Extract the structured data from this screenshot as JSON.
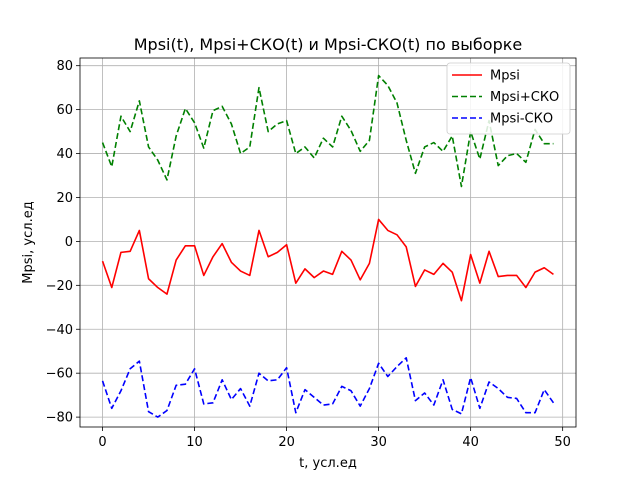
{
  "chart_data": {
    "type": "line",
    "title": "Mpsi(t),  Mpsi+СКО(t) и Mpsi-СКО(t) по выборке",
    "xlabel": "t, усл.ед",
    "ylabel": "Mpsi, усл.ед",
    "xlim": [
      -2.45,
      51.45
    ],
    "ylim": [
      -84.5,
      83.5
    ],
    "xticks": [
      0,
      10,
      20,
      30,
      40,
      50
    ],
    "yticks": [
      -80,
      -60,
      -40,
      -20,
      0,
      20,
      40,
      60,
      80
    ],
    "grid": true,
    "legend_position": "top-right",
    "x": [
      0,
      1,
      2,
      3,
      4,
      5,
      6,
      7,
      8,
      9,
      10,
      11,
      12,
      13,
      14,
      15,
      16,
      17,
      18,
      19,
      20,
      21,
      22,
      23,
      24,
      25,
      26,
      27,
      28,
      29,
      30,
      31,
      32,
      33,
      34,
      35,
      36,
      37,
      38,
      39,
      40,
      41,
      42,
      43,
      44,
      45,
      46,
      47,
      48,
      49
    ],
    "series": [
      {
        "name": "Mpsi",
        "color": "#ff0000",
        "dash": "solid",
        "values": [
          -9,
          -21,
          -5,
          -4.5,
          5,
          -17,
          -21,
          -24,
          -8.5,
          -2,
          -2,
          -15.5,
          -7,
          -1,
          -9.5,
          -13.5,
          -15.5,
          5,
          -7,
          -5,
          -1.5,
          -19,
          -12.5,
          -16.5,
          -13.5,
          -15,
          -4.5,
          -8.5,
          -17.5,
          -10,
          10,
          5,
          3,
          -2.5,
          -20.5,
          -13,
          -15,
          -10,
          -14,
          -27,
          -6,
          -19,
          -4.5,
          -16,
          -15.5,
          -15.5,
          -21,
          -14,
          -12,
          -15
        ]
      },
      {
        "name": "Mpsi+СКО",
        "color": "#008000",
        "dash": "dashed",
        "values": [
          45,
          34,
          57,
          50,
          64,
          43,
          37,
          28,
          48,
          60.5,
          54,
          42.5,
          59.5,
          61.5,
          53.5,
          40,
          43,
          70,
          50,
          53.5,
          55,
          40,
          43,
          38,
          47,
          43,
          57,
          50.5,
          41,
          46,
          75.5,
          71,
          63,
          46,
          31,
          43,
          45,
          41,
          48,
          25,
          50,
          37.5,
          55,
          34.5,
          39,
          40,
          36,
          51,
          44.5,
          44.5
        ]
      },
      {
        "name": "Mpsi-СКО",
        "color": "#0000ff",
        "dash": "dashed",
        "values": [
          -63.5,
          -76,
          -68,
          -58,
          -54.5,
          -77.5,
          -80,
          -77,
          -65.5,
          -65,
          -58,
          -74,
          -73.5,
          -63,
          -72,
          -67,
          -75,
          -60,
          -63.5,
          -63,
          -57.5,
          -78,
          -67.5,
          -71,
          -74.5,
          -74,
          -66,
          -68,
          -75,
          -67,
          -55.5,
          -61.5,
          -57,
          -53,
          -72.5,
          -69,
          -74.5,
          -63,
          -76.5,
          -78.5,
          -62,
          -76,
          -64,
          -67,
          -71,
          -71.5,
          -78,
          -78,
          -67.5,
          -73.5
        ]
      }
    ]
  }
}
